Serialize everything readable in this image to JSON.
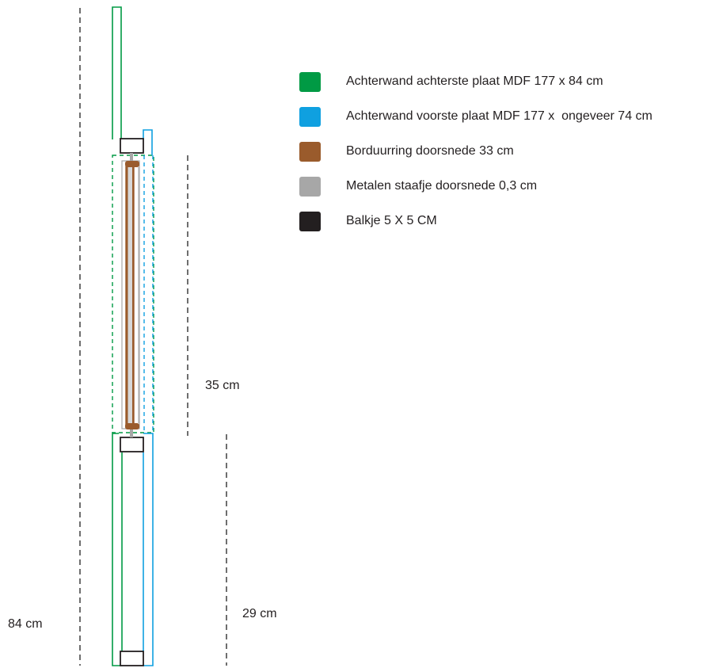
{
  "legend": {
    "items": [
      {
        "color": "#009a44",
        "label": "Achterwand achterste plaat MDF 177 x 84 cm"
      },
      {
        "color": "#0fa0e0",
        "label": "Achterwand voorste plaat MDF 177 x  ongeveer 74 cm"
      },
      {
        "color": "#9a5b2c",
        "label": "Borduurring doorsnede 33 cm"
      },
      {
        "color": "#a7a7a7",
        "label": "Metalen staafje doorsnede 0,3 cm"
      },
      {
        "color": "#231f20",
        "label": "Balkje 5 X 5 CM"
      }
    ]
  },
  "dimensions": {
    "embroidery_hoop_height": "35 cm",
    "lower_section_height": "29 cm",
    "total_height": "84 cm"
  },
  "colors": {
    "dimension_line": "#4a4a4a",
    "back_panel": "#009a44",
    "front_panel": "#0fa0e0",
    "hoop": "#9a5b2c",
    "rod": "#a7a7a7",
    "beam": "#231f20"
  }
}
